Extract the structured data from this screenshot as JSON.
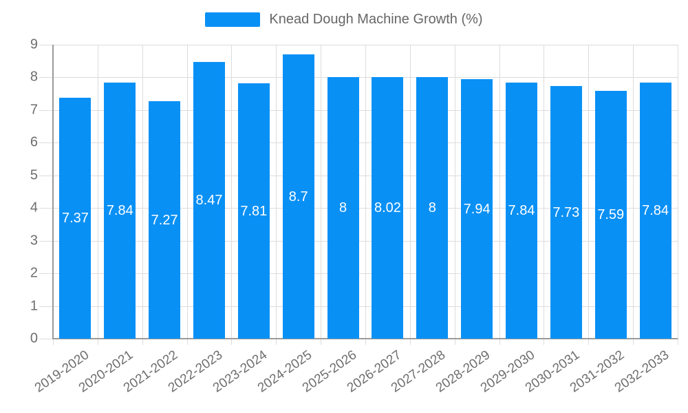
{
  "legend": {
    "label": "Knead Dough Machine Growth (%)"
  },
  "chart_data": {
    "type": "bar",
    "title": "Knead Dough Machine Growth (%)",
    "categories": [
      "2019-2020",
      "2020-2021",
      "2021-2022",
      "2022-2023",
      "2023-2024",
      "2024-2025",
      "2025-2026",
      "2026-2027",
      "2027-2028",
      "2028-2029",
      "2029-2030",
      "2030-2031",
      "2031-2032",
      "2032-2033"
    ],
    "values": [
      7.37,
      7.84,
      7.27,
      8.47,
      7.81,
      8.7,
      8,
      8.02,
      8,
      7.94,
      7.84,
      7.73,
      7.59,
      7.84
    ],
    "xlabel": "",
    "ylabel": "",
    "ylim": [
      0,
      9
    ],
    "yticks": [
      0,
      1,
      2,
      3,
      4,
      5,
      6,
      7,
      8,
      9
    ],
    "grid": true,
    "legend_position": "top",
    "value_labels": "inside-middle"
  },
  "colors": {
    "bar": "#0990F5",
    "grid": "#dcdcdc",
    "axis": "#9a9a9a",
    "tick_text": "#6e6e6e",
    "legend_text": "#666666",
    "value_label": "#ffffff",
    "background": "#ffffff"
  }
}
